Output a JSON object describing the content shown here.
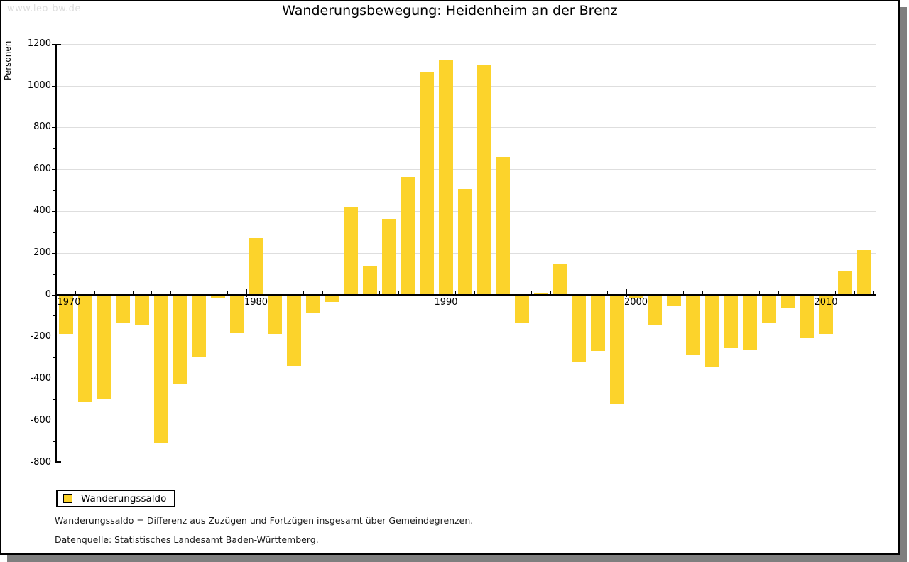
{
  "watermark": "www.leo-bw.de",
  "title": "Wanderungsbewegung: Heidenheim an der Brenz",
  "y_axis_label": "Personen",
  "legend": {
    "label": "Wanderungssaldo"
  },
  "footnotes": [
    "Wanderungssaldo = Differenz aus Zuzügen und Fortzügen insgesamt über Gemeindegrenzen.",
    "Datenquelle: Statistisches Landesamt Baden-Württemberg."
  ],
  "colors": {
    "bar": "#fcd32b",
    "gridline": "#dedede",
    "axis": "#000000",
    "watermark": "#dddddd",
    "shadow": "#7f7f7f"
  },
  "chart_data": {
    "type": "bar",
    "title": "Wanderungsbewegung: Heidenheim an der Brenz",
    "ylabel": "Personen",
    "series_name": "Wanderungssaldo",
    "ylim": [
      -800,
      1200
    ],
    "ytick_interval": 200,
    "x_tick_years": [
      1970,
      1980,
      1990,
      2000,
      2010
    ],
    "grid": true,
    "legend_position": "bottom-left",
    "years": [
      1970,
      1971,
      1972,
      1973,
      1974,
      1975,
      1976,
      1977,
      1978,
      1979,
      1980,
      1981,
      1982,
      1983,
      1984,
      1985,
      1986,
      1987,
      1988,
      1989,
      1990,
      1991,
      1992,
      1993,
      1994,
      1995,
      1996,
      1997,
      1998,
      1999,
      2000,
      2001,
      2002,
      2003,
      2004,
      2005,
      2006,
      2007,
      2008,
      2009,
      2010,
      2011,
      2012
    ],
    "values": [
      -185,
      -510,
      -495,
      -130,
      -140,
      -705,
      -420,
      -295,
      -10,
      -175,
      270,
      -185,
      -335,
      -80,
      -30,
      420,
      135,
      365,
      565,
      1065,
      1120,
      505,
      1100,
      660,
      -130,
      10,
      145,
      -315,
      -265,
      -520,
      -15,
      -140,
      -50,
      -285,
      -340,
      -250,
      -260,
      -130,
      -60,
      -205,
      -185,
      115,
      215
    ]
  }
}
